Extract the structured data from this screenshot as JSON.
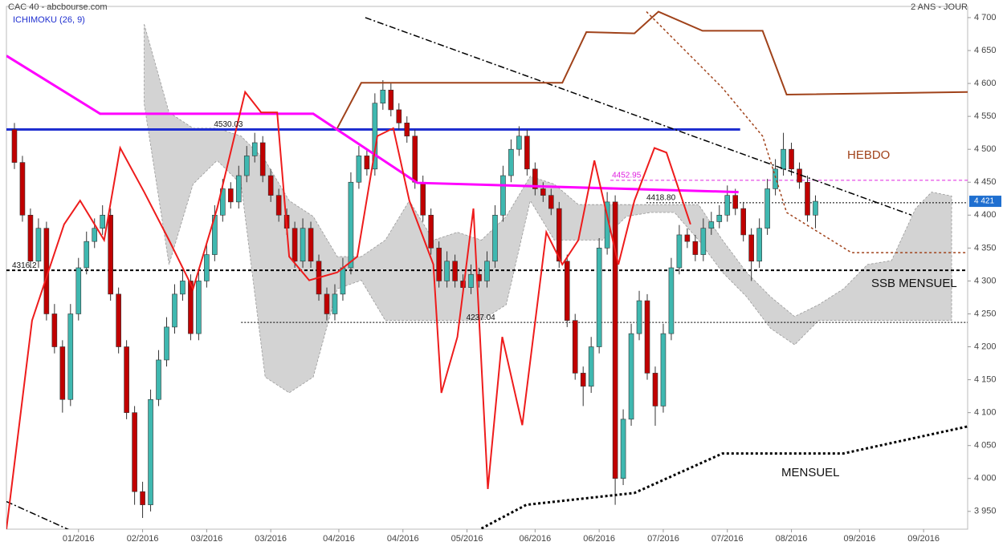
{
  "chart_data": {
    "type": "candlestick",
    "title": "CAC 40 - abcbourse.com",
    "subtitle": "2 ANS - JOUR",
    "indicator": "ICHIMOKU (26, 9)",
    "xlim": [
      -1,
      119
    ],
    "xticks": [
      {
        "value": 8,
        "label": "01/2016"
      },
      {
        "value": 16,
        "label": "02/2016"
      },
      {
        "value": 24,
        "label": "03/2016"
      },
      {
        "value": 32,
        "label": "03/2016"
      },
      {
        "value": 40.5,
        "label": "04/2016"
      },
      {
        "value": 48.5,
        "label": "04/2016"
      },
      {
        "value": 56.5,
        "label": "05/2016"
      },
      {
        "value": 65,
        "label": "06/2016"
      },
      {
        "value": 73,
        "label": "06/2016"
      },
      {
        "value": 81,
        "label": "07/2016"
      },
      {
        "value": 89,
        "label": "07/2016"
      },
      {
        "value": 97,
        "label": "08/2016"
      },
      {
        "value": 105.5,
        "label": "09/2016"
      },
      {
        "value": 113.5,
        "label": "09/2016"
      }
    ],
    "ylim": [
      3923,
      4717
    ],
    "yticks": [
      {
        "value": 3950,
        "label": "3 950"
      },
      {
        "value": 4000,
        "label": "4 000"
      },
      {
        "value": 4050,
        "label": "4 050"
      },
      {
        "value": 4100,
        "label": "4 100"
      },
      {
        "value": 4150,
        "label": "4 150"
      },
      {
        "value": 4200,
        "label": "4 200"
      },
      {
        "value": 4250,
        "label": "4 250"
      },
      {
        "value": 4300,
        "label": "4 300"
      },
      {
        "value": 4350,
        "label": "4 350"
      },
      {
        "value": 4400,
        "label": "4 400"
      },
      {
        "value": 4450,
        "label": "4 450"
      },
      {
        "value": 4500,
        "label": "4 500"
      },
      {
        "value": 4550,
        "label": "4 550"
      },
      {
        "value": 4600,
        "label": "4 600"
      },
      {
        "value": 4650,
        "label": "4 650"
      },
      {
        "value": 4700,
        "label": "4 700"
      }
    ],
    "up_color": "#3fb8b0",
    "down_color": "#c00000",
    "candles": [
      [
        4530,
        4540,
        4470,
        4480
      ],
      [
        4480,
        4490,
        4390,
        4400
      ],
      [
        4400,
        4410,
        4320,
        4330
      ],
      [
        4330,
        4395,
        4320,
        4380
      ],
      [
        4380,
        4390,
        4240,
        4250
      ],
      [
        4250,
        4265,
        4190,
        4200
      ],
      [
        4200,
        4210,
        4100,
        4120
      ],
      [
        4120,
        4265,
        4110,
        4250
      ],
      [
        4250,
        4335,
        4240,
        4320
      ],
      [
        4320,
        4375,
        4310,
        4360
      ],
      [
        4360,
        4395,
        4350,
        4380
      ],
      [
        4380,
        4415,
        4370,
        4400
      ],
      [
        4400,
        4410,
        4270,
        4280
      ],
      [
        4280,
        4290,
        4190,
        4200
      ],
      [
        4200,
        4210,
        4090,
        4100
      ],
      [
        4100,
        4110,
        3960,
        3980
      ],
      [
        3980,
        3995,
        3940,
        3960
      ],
      [
        3960,
        4135,
        3950,
        4120
      ],
      [
        4120,
        4195,
        4110,
        4180
      ],
      [
        4180,
        4245,
        4170,
        4230
      ],
      [
        4230,
        4295,
        4220,
        4280
      ],
      [
        4280,
        4315,
        4270,
        4300
      ],
      [
        4300,
        4310,
        4210,
        4220
      ],
      [
        4220,
        4315,
        4210,
        4300
      ],
      [
        4300,
        4355,
        4290,
        4340
      ],
      [
        4340,
        4415,
        4330,
        4400
      ],
      [
        4400,
        4455,
        4390,
        4440
      ],
      [
        4440,
        4450,
        4410,
        4420
      ],
      [
        4420,
        4475,
        4410,
        4460
      ],
      [
        4460,
        4505,
        4450,
        4490
      ],
      [
        4490,
        4525,
        4480,
        4510
      ],
      [
        4510,
        4520,
        4450,
        4460
      ],
      [
        4460,
        4470,
        4420,
        4430
      ],
      [
        4430,
        4440,
        4390,
        4400
      ],
      [
        4400,
        4410,
        4370,
        4380
      ],
      [
        4380,
        4390,
        4320,
        4330
      ],
      [
        4330,
        4395,
        4320,
        4380
      ],
      [
        4380,
        4390,
        4320,
        4330
      ],
      [
        4330,
        4340,
        4270,
        4280
      ],
      [
        4280,
        4290,
        4240,
        4250
      ],
      [
        4250,
        4295,
        4240,
        4280
      ],
      [
        4280,
        4335,
        4270,
        4320
      ],
      [
        4320,
        4465,
        4310,
        4450
      ],
      [
        4450,
        4505,
        4440,
        4490
      ],
      [
        4490,
        4500,
        4460,
        4470
      ],
      [
        4470,
        4585,
        4460,
        4570
      ],
      [
        4570,
        4605,
        4560,
        4590
      ],
      [
        4590,
        4600,
        4550,
        4560
      ],
      [
        4560,
        4570,
        4530,
        4540
      ],
      [
        4540,
        4550,
        4510,
        4520
      ],
      [
        4520,
        4530,
        4440,
        4450
      ],
      [
        4450,
        4460,
        4390,
        4400
      ],
      [
        4400,
        4410,
        4340,
        4350
      ],
      [
        4350,
        4360,
        4290,
        4300
      ],
      [
        4300,
        4345,
        4290,
        4330
      ],
      [
        4330,
        4340,
        4290,
        4300
      ],
      [
        4300,
        4310,
        4280,
        4290
      ],
      [
        4290,
        4325,
        4280,
        4310
      ],
      [
        4310,
        4320,
        4290,
        4300
      ],
      [
        4300,
        4345,
        4290,
        4330
      ],
      [
        4330,
        4415,
        4320,
        4400
      ],
      [
        4400,
        4475,
        4390,
        4460
      ],
      [
        4460,
        4515,
        4450,
        4500
      ],
      [
        4500,
        4535,
        4490,
        4520
      ],
      [
        4520,
        4530,
        4460,
        4470
      ],
      [
        4470,
        4480,
        4430,
        4440
      ],
      [
        4440,
        4450,
        4420,
        4430
      ],
      [
        4430,
        4440,
        4400,
        4410
      ],
      [
        4410,
        4420,
        4320,
        4330
      ],
      [
        4330,
        4340,
        4230,
        4240
      ],
      [
        4240,
        4250,
        4150,
        4160
      ],
      [
        4160,
        4170,
        4110,
        4140
      ],
      [
        4140,
        4215,
        4130,
        4200
      ],
      [
        4200,
        4365,
        4190,
        4350
      ],
      [
        4350,
        4435,
        4340,
        4420
      ],
      [
        4420,
        4430,
        3960,
        4000
      ],
      [
        4000,
        4105,
        3990,
        4090
      ],
      [
        4090,
        4235,
        4080,
        4220
      ],
      [
        4220,
        4285,
        4210,
        4270
      ],
      [
        4270,
        4280,
        4150,
        4160
      ],
      [
        4160,
        4170,
        4080,
        4110
      ],
      [
        4110,
        4235,
        4100,
        4220
      ],
      [
        4220,
        4335,
        4210,
        4320
      ],
      [
        4320,
        4385,
        4310,
        4370
      ],
      [
        4370,
        4380,
        4350,
        4360
      ],
      [
        4360,
        4370,
        4330,
        4340
      ],
      [
        4340,
        4395,
        4330,
        4380
      ],
      [
        4380,
        4405,
        4370,
        4390
      ],
      [
        4390,
        4415,
        4380,
        4400
      ],
      [
        4400,
        4445,
        4390,
        4430
      ],
      [
        4430,
        4440,
        4400,
        4410
      ],
      [
        4410,
        4420,
        4360,
        4370
      ],
      [
        4370,
        4380,
        4300,
        4330
      ],
      [
        4330,
        4395,
        4320,
        4380
      ],
      [
        4380,
        4455,
        4370,
        4440
      ],
      [
        4440,
        4485,
        4430,
        4470
      ],
      [
        4470,
        4525,
        4460,
        4500
      ],
      [
        4500,
        4510,
        4460,
        4470
      ],
      [
        4470,
        4480,
        4440,
        4450
      ],
      [
        4450,
        4460,
        4390,
        4400
      ],
      [
        4400,
        4430,
        4380,
        4421
      ]
    ],
    "last_price_label": "4 421",
    "cloud": {
      "color": "#d3d3d3",
      "x": [
        16.2,
        19.3,
        22.3,
        25.3,
        28.3,
        31.3,
        34.3,
        37.3,
        40.3,
        43.3,
        46.3,
        49.3,
        52.3,
        55.3,
        58.3,
        61.4,
        64.4,
        67.4,
        70.4,
        73.4,
        76.4,
        79.4,
        82.4,
        85.4,
        88.4,
        91.4,
        94.4,
        97.4,
        100.4,
        103.5,
        106.5,
        109.5,
        112.5,
        114.5,
        117
      ],
      "upper": [
        4690,
        4556,
        4532,
        4532,
        4520,
        4483,
        4422,
        4398,
        4337,
        4337,
        4362,
        4422,
        4362,
        4374,
        4362,
        4398,
        4459,
        4447,
        4416,
        4416,
        4416,
        4416,
        4416,
        4416,
        4362,
        4313,
        4276,
        4246,
        4264,
        4288,
        4325,
        4331,
        4410,
        4435,
        4429
      ],
      "lower": [
        4569,
        4325,
        4447,
        4483,
        4447,
        4154,
        4130,
        4154,
        4288,
        4301,
        4240,
        4240,
        4240,
        4240,
        4240,
        4264,
        4422,
        4362,
        4362,
        4362,
        4398,
        4404,
        4404,
        4362,
        4313,
        4276,
        4228,
        4203,
        4240,
        4240,
        4240,
        4240,
        4240,
        4240,
        4240
      ]
    },
    "lines": [
      {
        "color": "#ff00ff",
        "width": 3,
        "dash": "",
        "x": [
          -1,
          10.7,
          37.3,
          50.3,
          90.4
        ],
        "values": [
          4642,
          4554,
          4554,
          4449,
          4435
        ]
      },
      {
        "color": "#000000",
        "width": 1.5,
        "dash": "8 3 2 3",
        "x": [
          43.8,
          112
        ],
        "values": [
          4700,
          4400
        ]
      },
      {
        "color": "#000000",
        "width": 1.5,
        "dash": "8 3 2 3",
        "x": [
          -1,
          9.2
        ],
        "values": [
          3965,
          3909
        ]
      },
      {
        "color": "#a0421a",
        "width": 2,
        "dash": "",
        "x": [
          40.3,
          43.3,
          68.4,
          71.4,
          77.4,
          80.4,
          85.9,
          93.4,
          96.4,
          119
        ],
        "values": [
          4532,
          4601,
          4601,
          4678,
          4676,
          4709,
          4680,
          4680,
          4583,
          4587
        ]
      },
      {
        "color": "#a0421a",
        "width": 1.5,
        "dash": "3 3",
        "x": [
          78.9,
          88.4,
          93.4,
          96.4,
          104.5,
          119
        ],
        "values": [
          4709,
          4593,
          4520,
          4404,
          4343,
          4343
        ]
      },
      {
        "color": "#000000",
        "width": 3,
        "dash": "3 3",
        "x": [
          58.3,
          63.9,
          77.4,
          88.4,
          103.5,
          119
        ],
        "values": [
          3924,
          3960,
          3978,
          4038,
          4038,
          4079
        ]
      },
      {
        "color": "#ee1c1c",
        "width": 2,
        "dash": "",
        "x": [
          -1,
          2.2,
          6.2,
          8.2,
          11.2,
          13.2,
          16.2,
          19.3,
          22.3,
          25.3,
          28.8,
          30.8,
          32.8,
          34.3,
          36.8,
          40.3,
          42.8,
          45.3,
          47.3,
          49.3,
          52.3,
          53.3,
          55.3,
          57.3,
          59.1,
          60.9,
          63.4,
          66.4,
          68.4,
          70.4,
          72.4,
          75.4,
          77.4,
          79.9,
          81.4,
          84.4
        ],
        "values": [
          3923,
          4240,
          4386,
          4422,
          4362,
          4502,
          4435,
          4362,
          4288,
          4410,
          4587,
          4556,
          4556,
          4337,
          4301,
          4313,
          4337,
          4520,
          4532,
          4422,
          4325,
          4130,
          4215,
          4410,
          3984,
          4215,
          4081,
          4374,
          4325,
          4362,
          4483,
          4325,
          4422,
          4502,
          4495,
          4386
        ]
      }
    ],
    "levels": [
      {
        "value": 4530.03,
        "label": "4530.03",
        "color": "#1f2fd0",
        "width": 3,
        "dash": "",
        "start": -1,
        "end": 90.6,
        "label_at": 24.9
      },
      {
        "value": 4452.95,
        "label": "4452.95",
        "color": "#e020e0",
        "width": 1,
        "dash": "4 3",
        "start": 74.4,
        "end": 119,
        "label_at": 74.6
      },
      {
        "value": 4418.8,
        "label": "4418.80",
        "color": "#000000",
        "width": 1,
        "dash": "2 2",
        "start": 78.9,
        "end": 119,
        "label_at": 78.9
      },
      {
        "value": 4237.04,
        "label": "4237.04",
        "color": "#000000",
        "width": 1,
        "dash": "2 2",
        "start": 28.3,
        "end": 119,
        "label_at": 56.4
      },
      {
        "value": 4316.2,
        "label": "4316.2",
        "color": "#000000",
        "width": 2,
        "dash": "4 3",
        "start": -1,
        "end": 119,
        "label_at": -0.3
      }
    ],
    "annotations": [
      {
        "text": "HEBDO",
        "color": "#a0421a"
      },
      {
        "text": "SSB MENSUEL",
        "color": "#111111"
      },
      {
        "text": "MENSUEL",
        "color": "#111111"
      }
    ]
  }
}
